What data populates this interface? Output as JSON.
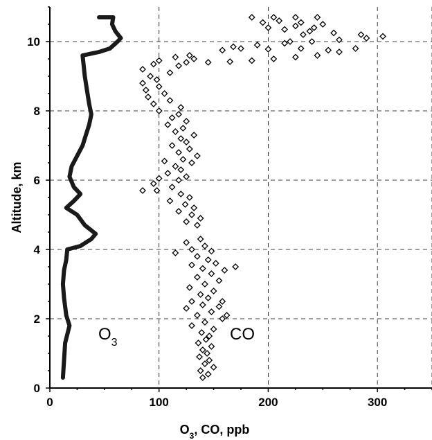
{
  "chart_data": {
    "type": "scatter",
    "title": "",
    "xlabel": "O3, CO, ppb",
    "xlabel_main": "O",
    "xlabel_sub": "3",
    "xlabel_rest": ", CO, ppb",
    "ylabel": "Altitude, km",
    "xlim": [
      0,
      350
    ],
    "ylim": [
      0,
      11
    ],
    "xticks": [
      0,
      100,
      200,
      300
    ],
    "yticks": [
      0,
      2,
      4,
      6,
      8,
      10
    ],
    "grid": true,
    "series": [
      {
        "name": "O3",
        "label_main": "O",
        "label_sub": "3",
        "marker": "line",
        "points": [
          [
            12,
            0.3
          ],
          [
            13,
            0.8
          ],
          [
            14,
            1.3
          ],
          [
            18,
            1.8
          ],
          [
            15,
            2.1
          ],
          [
            13,
            2.6
          ],
          [
            12,
            3.0
          ],
          [
            13,
            3.4
          ],
          [
            15,
            3.7
          ],
          [
            16,
            4.0
          ],
          [
            28,
            4.1
          ],
          [
            38,
            4.3
          ],
          [
            42,
            4.45
          ],
          [
            32,
            4.7
          ],
          [
            25,
            5.0
          ],
          [
            15,
            5.2
          ],
          [
            22,
            5.4
          ],
          [
            28,
            5.6
          ],
          [
            22,
            5.8
          ],
          [
            18,
            6.1
          ],
          [
            20,
            6.4
          ],
          [
            25,
            6.7
          ],
          [
            30,
            7.0
          ],
          [
            33,
            7.3
          ],
          [
            36,
            7.6
          ],
          [
            38,
            7.9
          ],
          [
            36,
            8.2
          ],
          [
            34,
            8.6
          ],
          [
            32,
            9.0
          ],
          [
            31,
            9.3
          ],
          [
            30,
            9.6
          ],
          [
            45,
            9.7
          ],
          [
            55,
            9.8
          ],
          [
            62,
            10.0
          ],
          [
            65,
            10.1
          ],
          [
            60,
            10.3
          ],
          [
            57,
            10.5
          ],
          [
            58,
            10.7
          ],
          [
            45,
            10.7
          ]
        ]
      },
      {
        "name": "CO",
        "marker": "diamond",
        "points": [
          [
            140,
            0.3
          ],
          [
            145,
            0.4
          ],
          [
            138,
            0.5
          ],
          [
            150,
            0.6
          ],
          [
            142,
            0.7
          ],
          [
            146,
            0.8
          ],
          [
            137,
            0.9
          ],
          [
            144,
            1.0
          ],
          [
            140,
            1.1
          ],
          [
            148,
            1.2
          ],
          [
            136,
            1.3
          ],
          [
            143,
            1.4
          ],
          [
            146,
            1.5
          ],
          [
            139,
            1.6
          ],
          [
            150,
            1.7
          ],
          [
            130,
            1.8
          ],
          [
            142,
            1.9
          ],
          [
            158,
            2.0
          ],
          [
            135,
            2.1
          ],
          [
            162,
            2.1
          ],
          [
            148,
            2.2
          ],
          [
            125,
            2.3
          ],
          [
            155,
            2.35
          ],
          [
            140,
            2.4
          ],
          [
            130,
            2.5
          ],
          [
            158,
            2.5
          ],
          [
            145,
            2.6
          ],
          [
            138,
            2.7
          ],
          [
            150,
            2.8
          ],
          [
            128,
            2.9
          ],
          [
            142,
            3.0
          ],
          [
            155,
            3.1
          ],
          [
            135,
            3.2
          ],
          [
            148,
            3.3
          ],
          [
            160,
            3.4
          ],
          [
            140,
            3.45
          ],
          [
            170,
            3.5
          ],
          [
            130,
            3.55
          ],
          [
            152,
            3.6
          ],
          [
            145,
            3.7
          ],
          [
            135,
            3.8
          ],
          [
            115,
            3.9
          ],
          [
            148,
            3.95
          ],
          [
            130,
            4.0
          ],
          [
            142,
            4.1
          ],
          [
            125,
            4.2
          ],
          [
            138,
            4.3
          ],
          [
            135,
            4.7
          ],
          [
            125,
            4.8
          ],
          [
            138,
            4.9
          ],
          [
            130,
            5.0
          ],
          [
            118,
            5.1
          ],
          [
            132,
            5.2
          ],
          [
            124,
            5.3
          ],
          [
            110,
            5.4
          ],
          [
            128,
            5.5
          ],
          [
            120,
            5.6
          ],
          [
            98,
            5.7
          ],
          [
            85,
            5.7
          ],
          [
            112,
            5.8
          ],
          [
            95,
            5.9
          ],
          [
            118,
            6.0
          ],
          [
            100,
            6.05
          ],
          [
            125,
            6.1
          ],
          [
            108,
            6.2
          ],
          [
            120,
            6.3
          ],
          [
            115,
            6.4
          ],
          [
            130,
            6.5
          ],
          [
            105,
            6.55
          ],
          [
            122,
            6.6
          ],
          [
            135,
            6.7
          ],
          [
            118,
            6.8
          ],
          [
            128,
            6.9
          ],
          [
            112,
            7.0
          ],
          [
            125,
            7.1
          ],
          [
            120,
            7.2
          ],
          [
            132,
            7.3
          ],
          [
            115,
            7.4
          ],
          [
            122,
            7.5
          ],
          [
            108,
            7.6
          ],
          [
            125,
            7.7
          ],
          [
            112,
            7.8
          ],
          [
            118,
            7.9
          ],
          [
            100,
            8.0
          ],
          [
            120,
            8.1
          ],
          [
            95,
            8.2
          ],
          [
            110,
            8.3
          ],
          [
            90,
            8.4
          ],
          [
            105,
            8.5
          ],
          [
            88,
            8.6
          ],
          [
            100,
            8.7
          ],
          [
            85,
            8.8
          ],
          [
            98,
            8.9
          ],
          [
            92,
            9.0
          ],
          [
            110,
            9.1
          ],
          [
            85,
            9.2
          ],
          [
            118,
            9.3
          ],
          [
            95,
            9.35
          ],
          [
            125,
            9.4
          ],
          [
            100,
            9.45
          ],
          [
            132,
            9.5
          ],
          [
            115,
            9.55
          ],
          [
            128,
            9.6
          ],
          [
            145,
            9.4
          ],
          [
            165,
            9.42
          ],
          [
            185,
            9.45
          ],
          [
            205,
            9.5
          ],
          [
            225,
            9.55
          ],
          [
            245,
            9.6
          ],
          [
            265,
            9.7
          ],
          [
            280,
            9.8
          ],
          [
            255,
            9.75
          ],
          [
            230,
            9.8
          ],
          [
            200,
            9.78
          ],
          [
            175,
            9.8
          ],
          [
            158,
            9.75
          ],
          [
            168,
            9.85
          ],
          [
            190,
            9.9
          ],
          [
            215,
            9.95
          ],
          [
            240,
            10.0
          ],
          [
            265,
            10.05
          ],
          [
            290,
            10.1
          ],
          [
            305,
            10.15
          ],
          [
            285,
            10.2
          ],
          [
            260,
            10.25
          ],
          [
            238,
            10.3
          ],
          [
            215,
            10.35
          ],
          [
            200,
            10.4
          ],
          [
            225,
            10.45
          ],
          [
            250,
            10.5
          ],
          [
            230,
            10.55
          ],
          [
            210,
            10.6
          ],
          [
            185,
            10.7
          ],
          [
            205,
            10.7
          ],
          [
            225,
            10.7
          ],
          [
            245,
            10.7
          ],
          [
            232,
            10.2
          ],
          [
            220,
            10.0
          ],
          [
            242,
            10.4
          ],
          [
            195,
            10.55
          ]
        ]
      }
    ]
  }
}
